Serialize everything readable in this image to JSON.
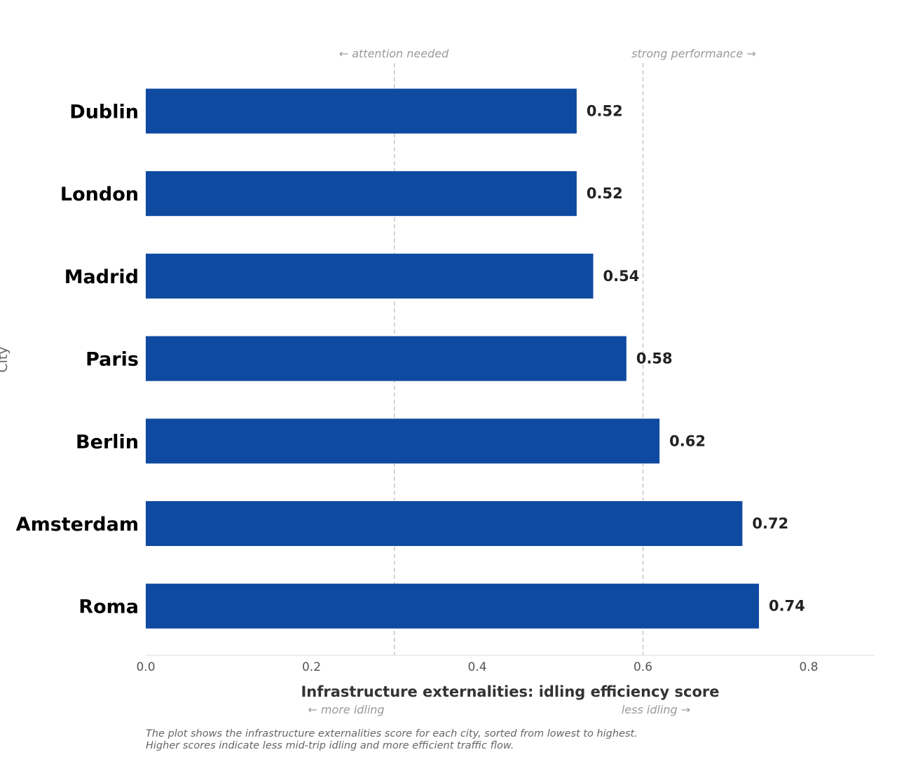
{
  "chart_data": {
    "type": "bar",
    "orientation": "horizontal",
    "categories": [
      "Dublin",
      "London",
      "Madrid",
      "Paris",
      "Berlin",
      "Amsterdam",
      "Roma"
    ],
    "values": [
      0.52,
      0.52,
      0.54,
      0.58,
      0.62,
      0.72,
      0.74
    ],
    "value_labels": [
      "0.52",
      "0.52",
      "0.54",
      "0.58",
      "0.62",
      "0.72",
      "0.74"
    ],
    "xlabel": "Infrastructure externalities: idling efficiency score",
    "ylabel": "City",
    "xlim": [
      0,
      0.88
    ],
    "xticks": [
      0.0,
      0.2,
      0.4,
      0.6,
      0.8
    ],
    "xtick_labels": [
      "0.0",
      "0.2",
      "0.4",
      "0.6",
      "0.8"
    ],
    "reference_lines": [
      0.3,
      0.6
    ],
    "bar_color": "#0f4aa1",
    "top_annotations": {
      "left": "← attention needed",
      "right": "strong performance →"
    },
    "axis_annotations": {
      "left": "← more idling",
      "right": "less idling →"
    },
    "footnote_lines": [
      "The plot shows the infrastructure externalities score for each city, sorted from lowest to highest.",
      "Higher scores indicate less mid-trip idling and more efficient traffic flow."
    ]
  }
}
